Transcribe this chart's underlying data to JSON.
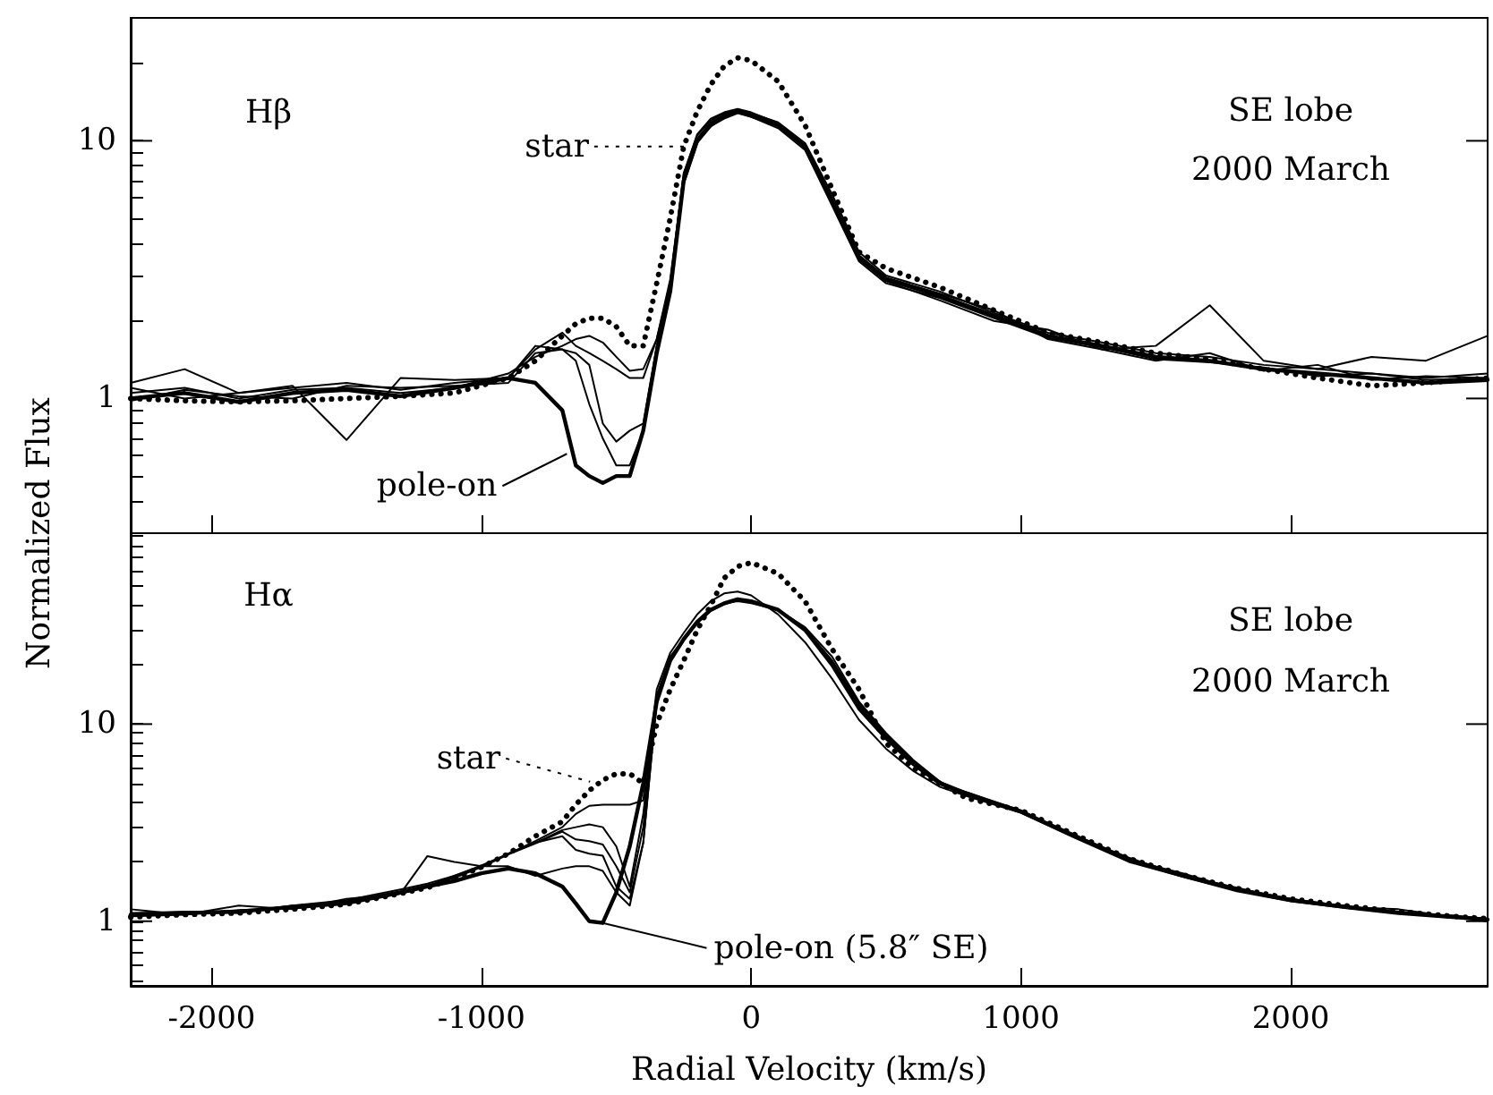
{
  "chart_data": [
    {
      "type": "line",
      "ylabel": "Normalized Flux",
      "log": "y",
      "tick_labels": "y",
      "xlim": [
        -2300,
        2730
      ],
      "xticks": [
        -2000,
        -1000,
        0,
        1000,
        2000
      ],
      "ylim": [
        0.3,
        30
      ],
      "yticks": [
        {
          "value": 0.4,
          "label": null
        },
        {
          "value": 0.5,
          "label": null
        },
        {
          "value": 0.6,
          "label": null
        },
        {
          "value": 0.7,
          "label": null
        },
        {
          "value": 0.8,
          "label": null
        },
        {
          "value": 0.9,
          "label": null
        },
        {
          "value": 1,
          "label": "1"
        },
        {
          "value": 2,
          "label": null
        },
        {
          "value": 3,
          "label": null
        },
        {
          "value": 4,
          "label": null
        },
        {
          "value": 5,
          "label": null
        },
        {
          "value": 6,
          "label": null
        },
        {
          "value": 7,
          "label": null
        },
        {
          "value": 8,
          "label": null
        },
        {
          "value": 9,
          "label": null
        },
        {
          "value": 10,
          "label": "10"
        },
        {
          "value": 20,
          "label": null
        }
      ],
      "annotations": [
        "Hβ",
        "SE lobe",
        "2000 March",
        {
          "text": "star",
          "x": -250,
          "y": 9.5
        },
        {
          "text": "pole-on",
          "x": -683,
          "y": 0.61
        }
      ],
      "x": [
        -2300,
        -2100,
        -1900,
        -1700,
        -1500,
        -1300,
        -1100,
        -900,
        -800,
        -700,
        -650,
        -600,
        -550,
        -500,
        -450,
        -400,
        -350,
        -300,
        -250,
        -200,
        -150,
        -100,
        -50,
        0,
        100,
        200,
        300,
        400,
        500,
        700,
        900,
        1100,
        1300,
        1500,
        1700,
        1900,
        2100,
        2300,
        2500,
        2730
      ],
      "series": [
        {
          "color": "#000000",
          "values": [
            1.0,
            1.05,
            0.97,
            1.05,
            1.08,
            1.02,
            1.1,
            1.2,
            1.15,
            0.9,
            0.55,
            0.5,
            0.47,
            0.5,
            0.5,
            0.75,
            1.5,
            2.6,
            7,
            10,
            11.5,
            12.5,
            13,
            12.5,
            11.5,
            9.5,
            5.8,
            3.5,
            2.9,
            2.5,
            2.1,
            1.75,
            1.6,
            1.45,
            1.4,
            1.3,
            1.25,
            1.2,
            1.15,
            1.18
          ]
        },
        {
          "color": "#000000",
          "values": [
            1.05,
            1.1,
            1.0,
            1.08,
            1.1,
            1.05,
            1.1,
            1.25,
            1.45,
            1.6,
            1.7,
            1.75,
            1.65,
            1.45,
            1.28,
            1.3,
            1.7,
            2.8,
            7.5,
            10.5,
            12,
            12.8,
            13.2,
            12.8,
            11.8,
            9.8,
            6.2,
            3.7,
            3.0,
            2.6,
            2.15,
            1.8,
            1.65,
            1.5,
            1.45,
            1.35,
            1.3,
            1.25,
            1.2,
            1.25
          ]
        },
        {
          "color": "#000000",
          "values": [
            1.1,
            1.0,
            1.05,
            1.1,
            1.15,
            1.08,
            1.15,
            1.2,
            1.6,
            1.55,
            1.5,
            1.35,
            0.8,
            0.68,
            0.75,
            0.8,
            1.6,
            2.7,
            7.2,
            10.2,
            11.8,
            12.6,
            13,
            12.6,
            11.6,
            9.6,
            6.0,
            3.6,
            2.95,
            2.55,
            2.2,
            1.7,
            1.55,
            1.4,
            1.5,
            1.28,
            1.35,
            1.18,
            1.22,
            1.2
          ]
        },
        {
          "color": "#000000",
          "values": [
            0.98,
            1.08,
            1.02,
            1.0,
            1.12,
            1.1,
            1.12,
            1.15,
            1.5,
            1.55,
            1.4,
            0.95,
            0.7,
            0.55,
            0.55,
            0.75,
            1.6,
            2.6,
            6.8,
            9.8,
            11.4,
            12.2,
            12.8,
            12.4,
            11.2,
            9.2,
            5.6,
            3.4,
            2.8,
            2.45,
            2.05,
            1.72,
            1.58,
            1.42,
            1.38,
            1.32,
            1.22,
            1.25,
            1.18,
            1.2
          ]
        },
        {
          "color": "#000000",
          "values": [
            1.15,
            1.3,
            1.05,
            1.12,
            0.69,
            1.2,
            1.18,
            1.2,
            1.55,
            1.8,
            1.6,
            1.5,
            1.4,
            1.3,
            1.2,
            1.2,
            1.7,
            2.9,
            7.4,
            10.6,
            12.2,
            12.9,
            13.3,
            12.9,
            11.7,
            9.4,
            5.9,
            3.5,
            2.85,
            2.4,
            2.0,
            1.85,
            1.55,
            1.6,
            2.3,
            1.4,
            1.3,
            1.45,
            1.4,
            1.75
          ]
        },
        {
          "color": "#000000",
          "line_style": "dotted",
          "values": [
            1.0,
            0.98,
            0.97,
            0.98,
            1.0,
            1.02,
            1.05,
            1.2,
            1.4,
            1.75,
            1.95,
            2.05,
            2.05,
            1.9,
            1.6,
            1.6,
            2.8,
            5.0,
            9.5,
            13,
            16.5,
            19.5,
            21,
            20.5,
            17,
            11.5,
            6.5,
            3.7,
            3.2,
            2.7,
            2.2,
            1.8,
            1.65,
            1.5,
            1.42,
            1.3,
            1.2,
            1.12,
            1.15,
            1.2
          ]
        }
      ]
    },
    {
      "type": "line",
      "xlabel": "Radial Velocity (km/s)",
      "log": "y",
      "xlim": [
        -2300,
        2730
      ],
      "xticks": [
        -2000,
        -1000,
        0,
        1000,
        2000
      ],
      "ylim": [
        0.47,
        93
      ],
      "yticks": [
        {
          "value": 0.5,
          "label": null
        },
        {
          "value": 0.6,
          "label": null
        },
        {
          "value": 0.7,
          "label": null
        },
        {
          "value": 0.8,
          "label": null
        },
        {
          "value": 0.9,
          "label": null
        },
        {
          "value": 1,
          "label": "1"
        },
        {
          "value": 2,
          "label": null
        },
        {
          "value": 3,
          "label": null
        },
        {
          "value": 4,
          "label": null
        },
        {
          "value": 5,
          "label": null
        },
        {
          "value": 6,
          "label": null
        },
        {
          "value": 7,
          "label": null
        },
        {
          "value": 8,
          "label": null
        },
        {
          "value": 9,
          "label": null
        },
        {
          "value": 10,
          "label": "10"
        },
        {
          "value": 20,
          "label": null
        },
        {
          "value": 30,
          "label": null
        },
        {
          "value": 40,
          "label": null
        },
        {
          "value": 50,
          "label": null
        },
        {
          "value": 60,
          "label": null
        },
        {
          "value": 70,
          "label": null
        },
        {
          "value": 80,
          "label": null
        },
        {
          "value": 90,
          "label": null
        }
      ],
      "annotations": [
        "Hα",
        "SE lobe",
        "2000 March",
        {
          "text": "star",
          "x": -597,
          "y": 5.1
        },
        {
          "text": "pole-on (5.8″ SE)",
          "x": -550,
          "y": 0.98
        }
      ],
      "x": [
        -2300,
        -2100,
        -1900,
        -1700,
        -1500,
        -1300,
        -1200,
        -1100,
        -1000,
        -900,
        -800,
        -700,
        -650,
        -600,
        -550,
        -500,
        -450,
        -400,
        -350,
        -300,
        -250,
        -200,
        -150,
        -100,
        -50,
        0,
        100,
        200,
        300,
        400,
        500,
        600,
        700,
        800,
        1000,
        1200,
        1400,
        1600,
        1800,
        2000,
        2200,
        2400,
        2600,
        2730
      ],
      "series": [
        {
          "color": "#000000",
          "values": [
            1.08,
            1.1,
            1.12,
            1.18,
            1.25,
            1.4,
            1.5,
            1.6,
            1.75,
            1.85,
            1.75,
            1.5,
            1.23,
            1.0,
            0.98,
            1.4,
            2.4,
            5,
            13,
            21,
            27,
            33,
            38,
            41,
            43,
            42,
            38,
            30,
            20,
            12,
            8.5,
            6.3,
            5.0,
            4.4,
            3.6,
            2.7,
            2.05,
            1.7,
            1.45,
            1.28,
            1.18,
            1.1,
            1.05,
            1.02
          ]
        },
        {
          "color": "#000000",
          "values": [
            1.1,
            1.12,
            1.1,
            1.2,
            1.28,
            1.45,
            1.55,
            1.7,
            1.9,
            2.2,
            2.55,
            3.0,
            3.5,
            3.85,
            3.9,
            3.9,
            3.9,
            4.1,
            15,
            23,
            29,
            36,
            42,
            46,
            47,
            45,
            36,
            26,
            17,
            10.5,
            7.5,
            5.8,
            4.8,
            4.3,
            3.55,
            2.65,
            2.0,
            1.68,
            1.42,
            1.26,
            1.17,
            1.1,
            1.06,
            1.0
          ]
        },
        {
          "color": "#000000",
          "values": [
            1.06,
            1.08,
            1.14,
            1.16,
            1.22,
            1.38,
            1.5,
            1.7,
            1.92,
            2.2,
            2.5,
            2.9,
            3.0,
            3.1,
            3.0,
            2.4,
            1.5,
            3.5,
            14,
            22,
            27,
            33,
            38,
            41,
            43,
            42,
            38,
            30,
            21,
            12.5,
            8.6,
            6.4,
            5.0,
            4.4,
            3.6,
            2.7,
            2.05,
            1.7,
            1.45,
            1.28,
            1.18,
            1.1,
            1.05,
            1.02
          ]
        },
        {
          "color": "#000000",
          "values": [
            1.1,
            1.1,
            1.13,
            1.17,
            1.26,
            1.42,
            1.52,
            1.66,
            1.88,
            2.18,
            2.48,
            2.85,
            2.6,
            2.55,
            2.45,
            1.9,
            1.4,
            3.0,
            13.5,
            21.5,
            27,
            33,
            38,
            41,
            42,
            41,
            38,
            30.5,
            21,
            12.8,
            8.8,
            6.5,
            5.1,
            4.45,
            3.62,
            2.72,
            2.06,
            1.72,
            1.46,
            1.3,
            1.19,
            1.12,
            1.06,
            1.03
          ]
        },
        {
          "color": "#000000",
          "values": [
            1.07,
            1.1,
            1.11,
            1.2,
            1.24,
            1.4,
            1.5,
            1.68,
            1.9,
            2.2,
            2.5,
            2.7,
            2.3,
            2.2,
            2.15,
            1.5,
            1.3,
            2.5,
            13,
            21,
            26.5,
            32.5,
            37.5,
            40.5,
            42.5,
            41.5,
            38,
            31,
            22,
            13,
            9.0,
            6.6,
            5.1,
            4.5,
            3.65,
            2.7,
            2.1,
            1.7,
            1.48,
            1.28,
            1.2,
            1.1,
            1.07,
            1.03
          ]
        },
        {
          "color": "#000000",
          "values": [
            1.15,
            1.08,
            1.2,
            1.15,
            1.3,
            1.38,
            2.14,
            2.0,
            1.9,
            1.9,
            1.7,
            1.85,
            1.9,
            1.9,
            1.8,
            1.4,
            1.2,
            2.5,
            13,
            21,
            27,
            33,
            38,
            41,
            43,
            42,
            38,
            30,
            20,
            12,
            8.5,
            6.3,
            5.0,
            4.5,
            3.6,
            2.75,
            2.05,
            1.75,
            1.45,
            1.3,
            1.18,
            1.15,
            1.05,
            1.0
          ]
        },
        {
          "color": "#000000",
          "line_style": "dotted",
          "values": [
            1.05,
            1.08,
            1.1,
            1.15,
            1.22,
            1.38,
            1.48,
            1.65,
            1.88,
            2.2,
            2.7,
            3.2,
            3.9,
            4.6,
            5.2,
            5.6,
            5.6,
            5.0,
            10,
            15,
            21,
            30,
            40,
            55,
            63,
            66,
            58,
            42,
            24,
            15,
            8,
            6,
            5,
            4.2,
            3.65,
            2.75,
            2.08,
            1.72,
            1.47,
            1.3,
            1.2,
            1.12,
            1.06,
            1.03
          ]
        }
      ]
    }
  ]
}
